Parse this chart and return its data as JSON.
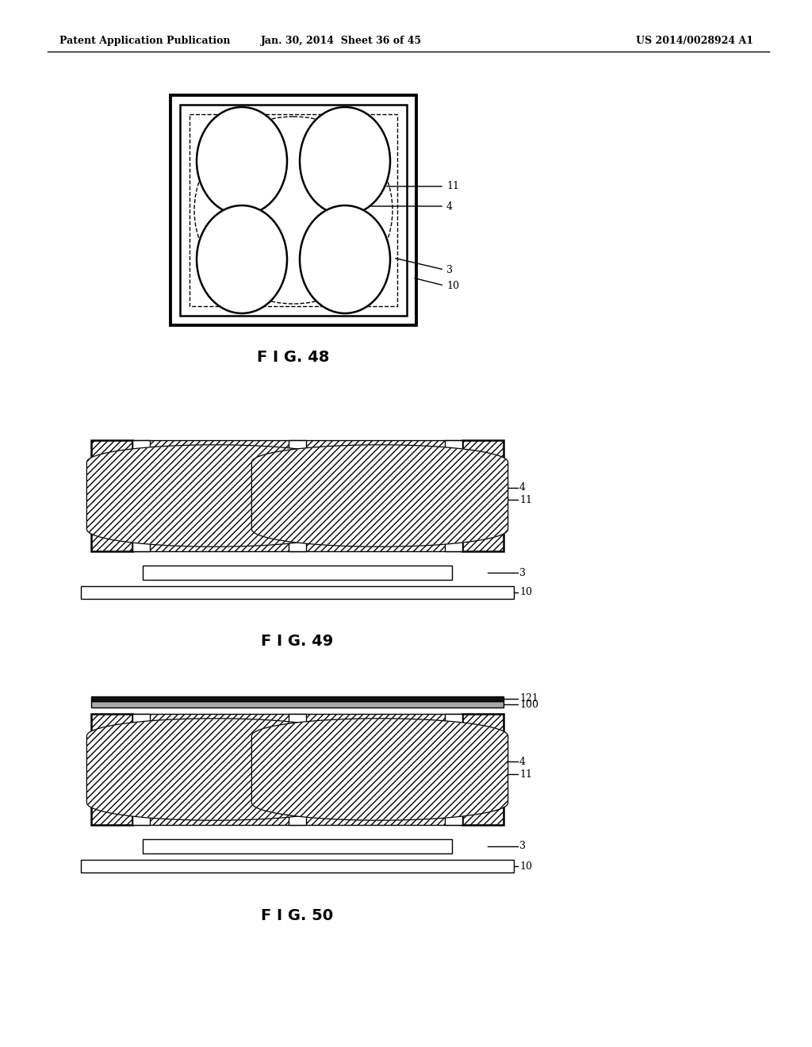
{
  "bg_color": "#ffffff",
  "lc": "#000000",
  "header_left": "Patent Application Publication",
  "header_mid": "Jan. 30, 2014  Sheet 36 of 45",
  "header_right": "US 2014/0028924 A1",
  "fig48_label": "F I G. 48",
  "fig49_label": "F I G. 49",
  "fig50_label": "F I G. 50"
}
